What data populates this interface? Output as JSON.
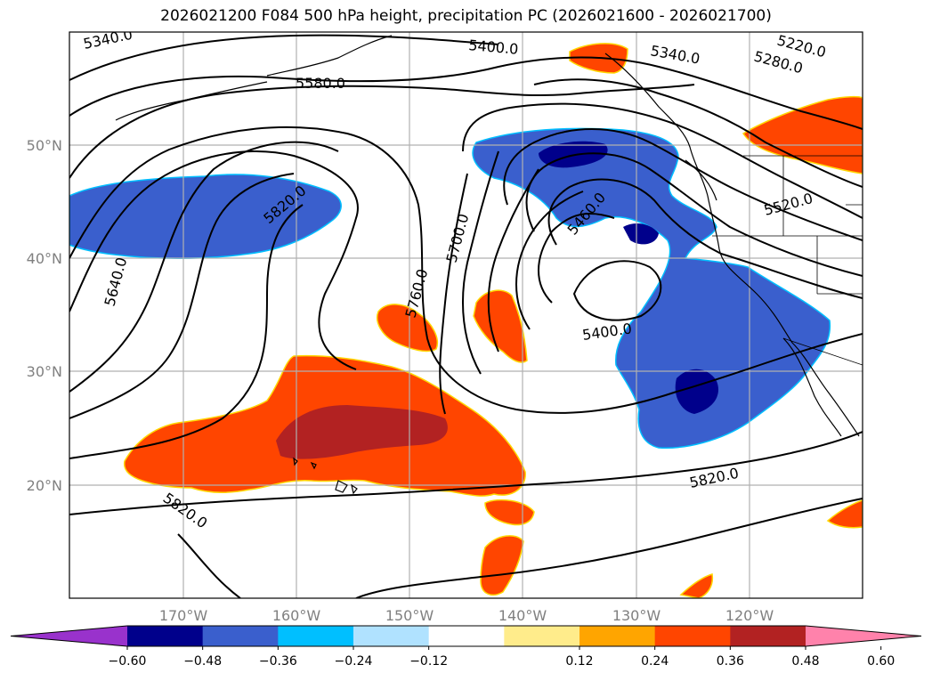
{
  "title": "2026021200 F084 500 hPa height, precipitation PC (2026021600 - 2026021700)",
  "map": {
    "lat_labels": [
      "50°N",
      "40°N",
      "30°N",
      "20°N"
    ],
    "lon_labels": [
      "170°W",
      "160°W",
      "150°W",
      "140°W",
      "130°W",
      "120°W"
    ],
    "contour_labels": [
      "5340.0",
      "5580.0",
      "5400.0",
      "5340.0",
      "5220.0",
      "5280.0",
      "5820.0",
      "5460.0",
      "5700.0",
      "5520.0",
      "5640.0",
      "5760.0",
      "5400.0",
      "5820.0",
      "5820.0"
    ]
  },
  "colorbar": {
    "ticks": [
      "−0.60",
      "−0.48",
      "−0.36",
      "−0.24",
      "−0.12",
      "0.12",
      "0.24",
      "0.36",
      "0.48",
      "0.60"
    ],
    "colors": [
      "#9932cc",
      "#00008b",
      "#3a5fcd",
      "#00bfff",
      "#b0e2ff",
      "#ffffff",
      "#ffec8b",
      "#ffa500",
      "#ff4500",
      "#b22222",
      "#ff82ab"
    ]
  }
}
